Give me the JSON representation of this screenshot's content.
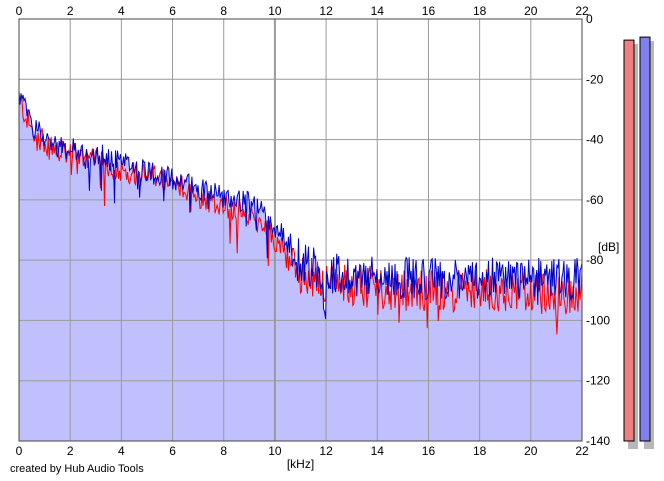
{
  "credit": "created by Hub Audio Tools",
  "colors": {
    "background": "#ffffff",
    "grid": "#9a9a9a",
    "axis": "#444444",
    "fill": "#c0c0ff",
    "left_channel": "#ff0000",
    "right_channel": "#0000cc",
    "meter_left": "#f08080",
    "meter_right": "#8080f0",
    "meter_shadow": "#b8b8b8"
  },
  "chart_data": {
    "type": "line",
    "title": "",
    "xlabel": "[kHz]",
    "ylabel": "[dB]",
    "xlim": [
      0,
      22
    ],
    "ylim": [
      -140,
      0
    ],
    "x_ticks": [
      "0",
      "2",
      "4",
      "6",
      "8",
      "10",
      "12",
      "14",
      "16",
      "18",
      "20",
      "22"
    ],
    "y_ticks": [
      "0",
      "-20",
      "-40",
      "-60",
      "-80",
      "-100",
      "-120",
      "-140"
    ],
    "grid": true,
    "legend": "none",
    "series": [
      {
        "color": "#ff0000",
        "x": [
          0,
          0.5,
          1,
          1.5,
          2,
          2.5,
          3,
          3.5,
          4,
          4.5,
          5,
          5.5,
          6,
          6.5,
          7,
          7.5,
          8,
          8.5,
          9,
          9.5,
          10,
          10.5,
          11,
          11.5,
          12,
          12.5,
          13,
          14,
          15,
          16,
          17,
          18,
          19,
          20,
          21,
          22
        ],
        "y": [
          -27,
          -37,
          -41,
          -44,
          -45,
          -46,
          -47,
          -49,
          -50,
          -51,
          -52,
          -53,
          -55,
          -56,
          -59,
          -60,
          -62,
          -63,
          -65,
          -68,
          -73,
          -79,
          -85,
          -86,
          -87,
          -88,
          -88,
          -89,
          -90,
          -90,
          -90,
          -90,
          -90,
          -91,
          -91,
          -91
        ]
      },
      {
        "color": "#0000cc",
        "x": [
          0,
          0.5,
          1,
          1.5,
          2,
          2.5,
          3,
          3.5,
          4,
          4.5,
          5,
          5.5,
          6,
          6.5,
          7,
          7.5,
          8,
          8.5,
          9,
          9.5,
          10,
          10.5,
          11,
          11.5,
          12,
          12.5,
          13,
          14,
          15,
          16,
          17,
          18,
          19,
          20,
          21,
          22
        ],
        "y": [
          -25,
          -35,
          -39,
          -42,
          -43,
          -44,
          -45,
          -46,
          -48,
          -49,
          -50,
          -52,
          -53,
          -54,
          -56,
          -57,
          -59,
          -60,
          -61,
          -64,
          -69,
          -74,
          -80,
          -82,
          -84,
          -85,
          -85,
          -86,
          -86,
          -86,
          -86,
          -86,
          -86,
          -86,
          -86,
          -86
        ]
      }
    ],
    "meters": [
      {
        "channel": "left",
        "top_db": -7,
        "color": "#f08080"
      },
      {
        "channel": "right",
        "top_db": -6,
        "color": "#8080f0"
      }
    ]
  }
}
